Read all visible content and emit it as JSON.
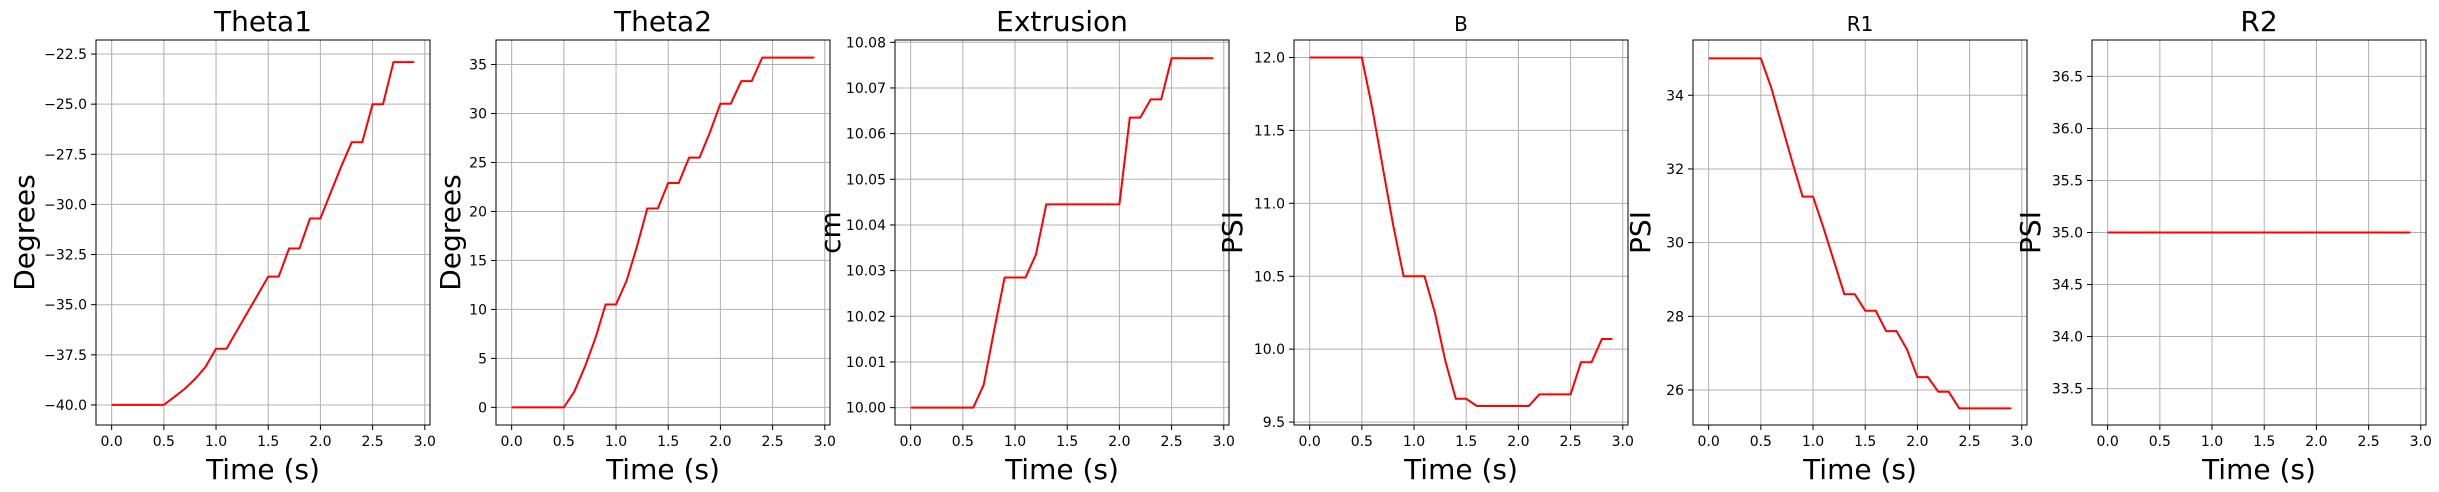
{
  "chart_data": [
    {
      "type": "line",
      "title": "Theta1",
      "xlabel": "Time (s)",
      "ylabel": "Degrees",
      "xlim": [
        -0.15,
        3.05
      ],
      "ylim": [
        -41.0,
        -21.8
      ],
      "xticks": [
        0.0,
        0.5,
        1.0,
        1.5,
        2.0,
        2.5,
        3.0
      ],
      "yticks": [
        -40.0,
        -37.5,
        -35.0,
        -32.5,
        -30.0,
        -27.5,
        -25.0,
        -22.5
      ],
      "grid": true,
      "series": [
        {
          "color": "#ff0000",
          "x": [
            0.0,
            0.1,
            0.2,
            0.3,
            0.4,
            0.5,
            0.6,
            0.7,
            0.8,
            0.9,
            1.0,
            1.1,
            1.2,
            1.3,
            1.4,
            1.5,
            1.6,
            1.7,
            1.8,
            1.9,
            2.0,
            2.1,
            2.2,
            2.3,
            2.4,
            2.5,
            2.6,
            2.7,
            2.8,
            2.9
          ],
          "y": [
            -40.0,
            -40.0,
            -40.0,
            -40.0,
            -40.0,
            -40.0,
            -39.6,
            -39.2,
            -38.7,
            -38.1,
            -37.2,
            -37.2,
            -36.3,
            -35.4,
            -34.5,
            -33.6,
            -33.6,
            -32.2,
            -32.2,
            -30.7,
            -30.7,
            -29.4,
            -28.1,
            -26.9,
            -26.9,
            -25.0,
            -25.0,
            -22.9,
            -22.9,
            -22.9
          ]
        }
      ]
    },
    {
      "type": "line",
      "title": "Theta2",
      "xlabel": "Time (s)",
      "ylabel": "Degrees",
      "xlim": [
        -0.15,
        3.05
      ],
      "ylim": [
        -1.8,
        37.5
      ],
      "xticks": [
        0.0,
        0.5,
        1.0,
        1.5,
        2.0,
        2.5,
        3.0
      ],
      "yticks": [
        0,
        5,
        10,
        15,
        20,
        25,
        30,
        35
      ],
      "grid": true,
      "series": [
        {
          "color": "#ff0000",
          "x": [
            0.0,
            0.1,
            0.2,
            0.3,
            0.4,
            0.5,
            0.6,
            0.7,
            0.8,
            0.9,
            1.0,
            1.1,
            1.2,
            1.3,
            1.4,
            1.5,
            1.6,
            1.7,
            1.8,
            1.9,
            2.0,
            2.1,
            2.2,
            2.3,
            2.4,
            2.5,
            2.6,
            2.7,
            2.8,
            2.9
          ],
          "y": [
            0.0,
            0.0,
            0.0,
            0.0,
            0.0,
            0.0,
            1.6,
            4.1,
            7.0,
            10.5,
            10.5,
            12.9,
            16.4,
            20.3,
            20.3,
            22.9,
            22.9,
            25.5,
            25.5,
            28.1,
            31.0,
            31.0,
            33.3,
            33.3,
            35.7,
            35.7,
            35.7,
            35.7,
            35.7,
            35.7
          ]
        }
      ]
    },
    {
      "type": "line",
      "title": "Extrusion",
      "xlabel": "Time (s)",
      "ylabel": "cm",
      "xlim": [
        -0.15,
        3.05
      ],
      "ylim": [
        9.9962,
        10.0805
      ],
      "xticks": [
        0.0,
        0.5,
        1.0,
        1.5,
        2.0,
        2.5,
        3.0
      ],
      "yticks": [
        10.0,
        10.01,
        10.02,
        10.03,
        10.04,
        10.05,
        10.06,
        10.07,
        10.08
      ],
      "grid": true,
      "series": [
        {
          "color": "#ff0000",
          "x": [
            0.0,
            0.1,
            0.2,
            0.3,
            0.4,
            0.5,
            0.6,
            0.7,
            0.8,
            0.9,
            1.0,
            1.1,
            1.2,
            1.3,
            1.4,
            1.5,
            1.6,
            1.7,
            1.8,
            1.9,
            2.0,
            2.1,
            2.2,
            2.3,
            2.4,
            2.5,
            2.6,
            2.7,
            2.8,
            2.9
          ],
          "y": [
            10.0,
            10.0,
            10.0,
            10.0,
            10.0,
            10.0,
            10.0,
            10.005,
            10.017,
            10.0285,
            10.0285,
            10.0285,
            10.0335,
            10.0445,
            10.0445,
            10.0445,
            10.0445,
            10.0445,
            10.0445,
            10.0445,
            10.0445,
            10.0635,
            10.0635,
            10.0675,
            10.0675,
            10.0765,
            10.0765,
            10.0765,
            10.0765,
            10.0765
          ]
        }
      ]
    },
    {
      "type": "line",
      "title": "B",
      "xlabel": "Time (s)",
      "ylabel": "PSI",
      "xlim": [
        -0.15,
        3.05
      ],
      "ylim": [
        9.48,
        12.12
      ],
      "xticks": [
        0.0,
        0.5,
        1.0,
        1.5,
        2.0,
        2.5,
        3.0
      ],
      "yticks": [
        9.5,
        10.0,
        10.5,
        11.0,
        11.5,
        12.0
      ],
      "grid": true,
      "series": [
        {
          "color": "#ff0000",
          "x": [
            0.0,
            0.1,
            0.2,
            0.3,
            0.4,
            0.5,
            0.6,
            0.7,
            0.8,
            0.9,
            1.0,
            1.1,
            1.2,
            1.3,
            1.4,
            1.5,
            1.6,
            1.7,
            1.8,
            1.9,
            2.0,
            2.1,
            2.2,
            2.3,
            2.4,
            2.5,
            2.6,
            2.7,
            2.8,
            2.9
          ],
          "y": [
            12.0,
            12.0,
            12.0,
            12.0,
            12.0,
            12.0,
            11.65,
            11.25,
            10.85,
            10.5,
            10.5,
            10.5,
            10.25,
            9.92,
            9.66,
            9.66,
            9.61,
            9.61,
            9.61,
            9.61,
            9.61,
            9.61,
            9.69,
            9.69,
            9.69,
            9.69,
            9.91,
            9.91,
            10.07,
            10.07
          ]
        }
      ]
    },
    {
      "type": "line",
      "title": "R1",
      "xlabel": "Time (s)",
      "ylabel": "PSI",
      "xlim": [
        -0.15,
        3.05
      ],
      "ylim": [
        25.05,
        35.5
      ],
      "xticks": [
        0.0,
        0.5,
        1.0,
        1.5,
        2.0,
        2.5,
        3.0
      ],
      "yticks": [
        26,
        28,
        30,
        32,
        34
      ],
      "grid": true,
      "series": [
        {
          "color": "#ff0000",
          "x": [
            0.0,
            0.1,
            0.2,
            0.3,
            0.4,
            0.5,
            0.6,
            0.7,
            0.8,
            0.9,
            1.0,
            1.1,
            1.2,
            1.3,
            1.4,
            1.5,
            1.6,
            1.7,
            1.8,
            1.9,
            2.0,
            2.1,
            2.2,
            2.3,
            2.4,
            2.5,
            2.6,
            2.7,
            2.8,
            2.9
          ],
          "y": [
            35.0,
            35.0,
            35.0,
            35.0,
            35.0,
            35.0,
            34.2,
            33.2,
            32.2,
            31.25,
            31.25,
            30.4,
            29.5,
            28.6,
            28.6,
            28.15,
            28.15,
            27.6,
            27.6,
            27.1,
            26.35,
            26.35,
            25.95,
            25.95,
            25.5,
            25.5,
            25.5,
            25.5,
            25.5,
            25.5
          ]
        }
      ]
    },
    {
      "type": "line",
      "title": "R2",
      "xlabel": "Time (s)",
      "ylabel": "PSI",
      "xlim": [
        -0.15,
        3.05
      ],
      "ylim": [
        33.15,
        36.85
      ],
      "xticks": [
        0.0,
        0.5,
        1.0,
        1.5,
        2.0,
        2.5,
        3.0
      ],
      "yticks": [
        33.5,
        34.0,
        34.5,
        35.0,
        35.5,
        36.0,
        36.5
      ],
      "grid": true,
      "series": [
        {
          "color": "#ff0000",
          "x": [
            0.0,
            0.5,
            1.0,
            1.5,
            2.0,
            2.5,
            2.9
          ],
          "y": [
            35.0,
            35.0,
            35.0,
            35.0,
            35.0,
            35.0,
            35.0
          ]
        }
      ]
    }
  ]
}
